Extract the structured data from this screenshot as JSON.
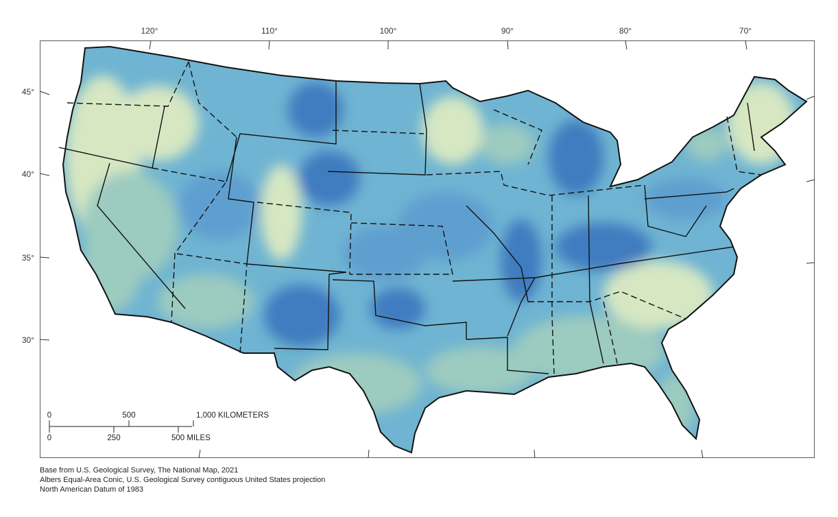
{
  "graticule": {
    "longitudes": [
      "120°",
      "110°",
      "100°",
      "90°",
      "80°",
      "70°"
    ],
    "latitudes": [
      "45°",
      "40°",
      "35°",
      "30°"
    ]
  },
  "scale_bar": {
    "km_ticks": [
      "0",
      "500",
      "1,000 KILOMETERS"
    ],
    "mile_ticks": [
      "0",
      "250",
      "500 MILES"
    ]
  },
  "credits": [
    "Base from U.S. Geological Survey, The National Map, 2021",
    "Albers Equal-Area Conic, U.S. Geological Survey contiguous United States projection",
    "North American Datum of 1983"
  ],
  "colors": {
    "high": "#3f7cc0",
    "mid_high": "#5f9fd0",
    "mid": "#6fb4d2",
    "low": "#9ccbbf",
    "lowest": "#d6e7c2",
    "border": "#111111"
  }
}
